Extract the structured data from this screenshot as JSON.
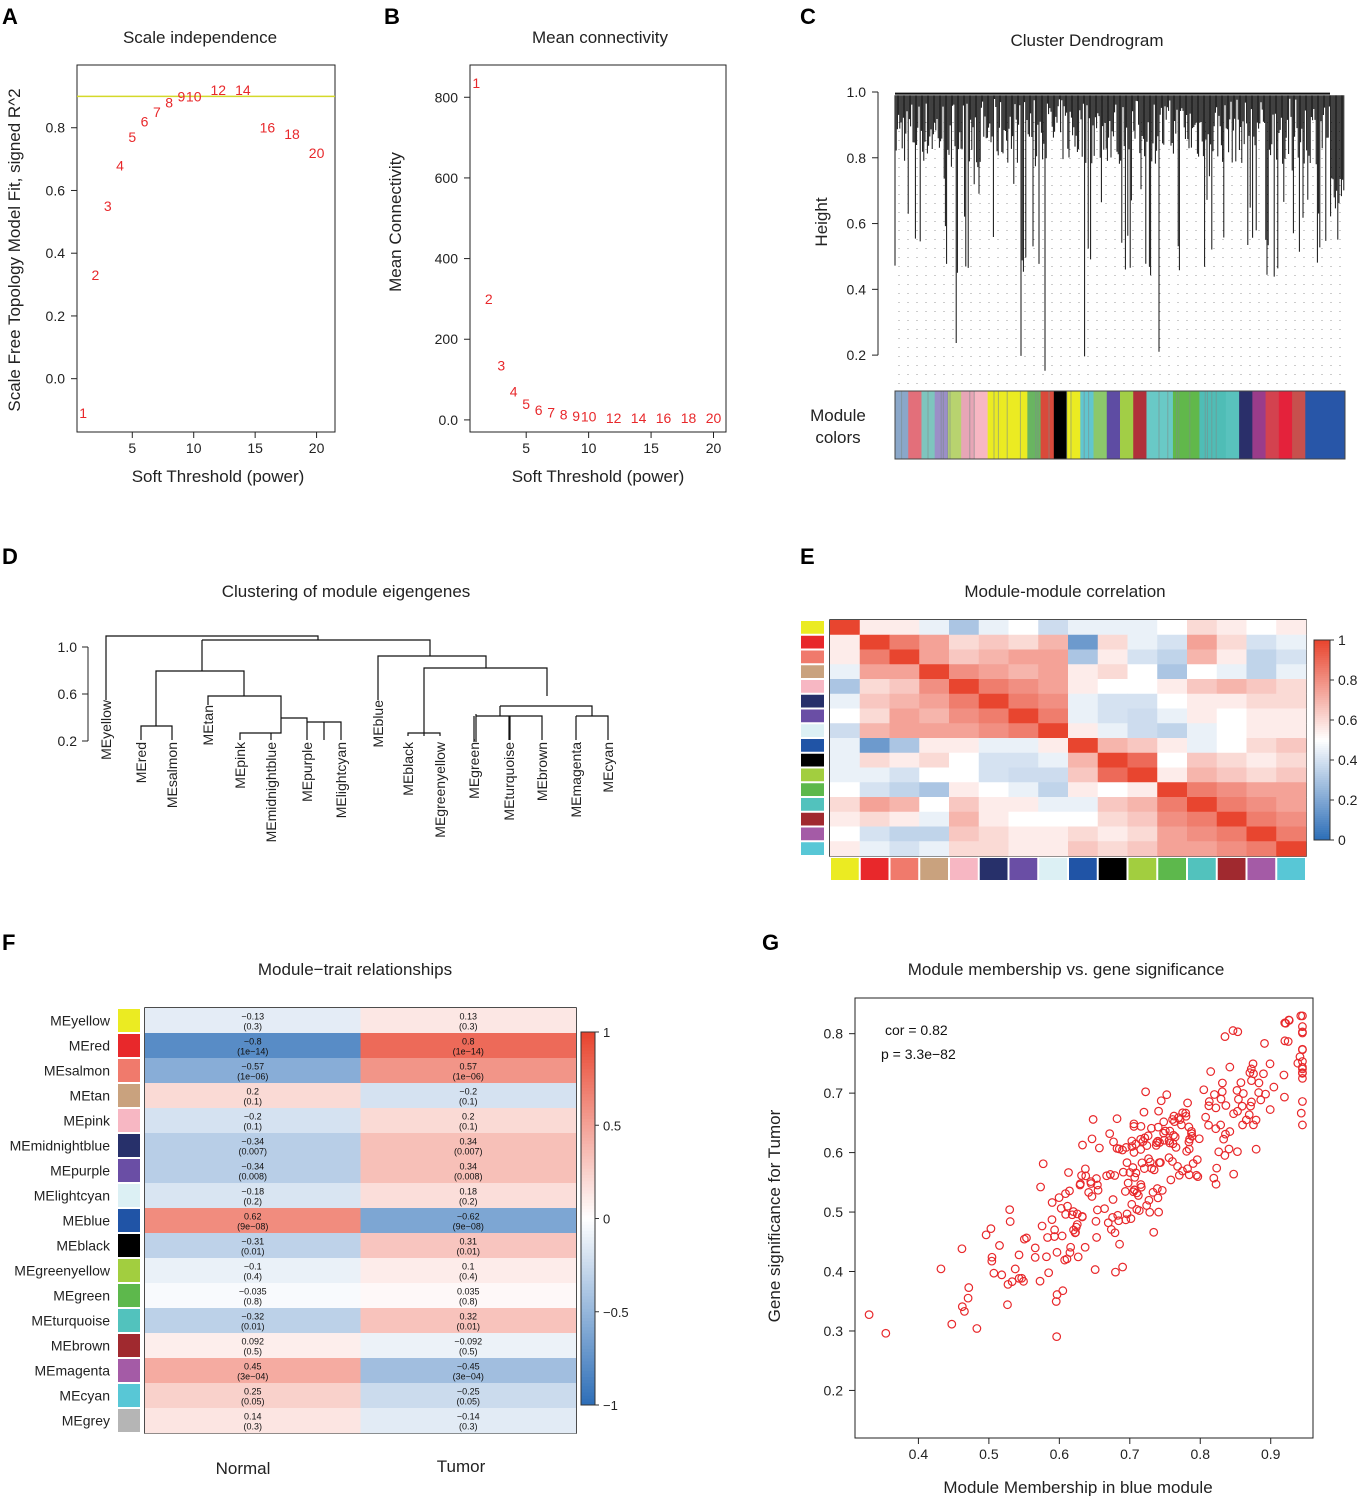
{
  "panel_labels": [
    "A",
    "B",
    "C",
    "D",
    "E",
    "F",
    "G"
  ],
  "colors": {
    "accent_red": "#e8282b",
    "threshold_line": "#d4d92a",
    "heat_low": "#2e6fb8",
    "heat_mid": "#ffffff",
    "heat_high": "#e8452f"
  },
  "chart_data": [
    {
      "id": "A",
      "type": "scatter",
      "title": "Scale independence",
      "xlabel": "Soft Threshold (power)",
      "ylabel": "Scale Free Topology Model Fit, signed R^2",
      "xlim": [
        0.5,
        21.5
      ],
      "ylim": [
        -0.17,
        1.0
      ],
      "xticks": [
        5,
        10,
        15,
        20
      ],
      "yticks": [
        0.0,
        0.2,
        0.4,
        0.6,
        0.8
      ],
      "hline": 0.9,
      "points": [
        {
          "x": 1,
          "y": -0.11,
          "label": "1"
        },
        {
          "x": 2,
          "y": 0.33,
          "label": "2"
        },
        {
          "x": 3,
          "y": 0.55,
          "label": "3"
        },
        {
          "x": 4,
          "y": 0.68,
          "label": "4"
        },
        {
          "x": 5,
          "y": 0.77,
          "label": "5"
        },
        {
          "x": 6,
          "y": 0.82,
          "label": "6"
        },
        {
          "x": 7,
          "y": 0.85,
          "label": "7"
        },
        {
          "x": 8,
          "y": 0.88,
          "label": "8"
        },
        {
          "x": 9,
          "y": 0.9,
          "label": "9"
        },
        {
          "x": 10,
          "y": 0.9,
          "label": "10"
        },
        {
          "x": 12,
          "y": 0.92,
          "label": "12"
        },
        {
          "x": 14,
          "y": 0.92,
          "label": "14"
        },
        {
          "x": 16,
          "y": 0.8,
          "label": "16"
        },
        {
          "x": 18,
          "y": 0.78,
          "label": "18"
        },
        {
          "x": 20,
          "y": 0.72,
          "label": "20"
        }
      ]
    },
    {
      "id": "B",
      "type": "scatter",
      "title": "Mean connectivity",
      "xlabel": "Soft Threshold (power)",
      "ylabel": "Mean Connectivity",
      "xlim": [
        0.5,
        21.0
      ],
      "ylim": [
        -30,
        880
      ],
      "xticks": [
        5,
        10,
        15,
        20
      ],
      "yticks": [
        0,
        200,
        400,
        600,
        800
      ],
      "points": [
        {
          "x": 1,
          "y": 835,
          "label": "1"
        },
        {
          "x": 2,
          "y": 300,
          "label": "2"
        },
        {
          "x": 3,
          "y": 135,
          "label": "3"
        },
        {
          "x": 4,
          "y": 70,
          "label": "4"
        },
        {
          "x": 5,
          "y": 40,
          "label": "5"
        },
        {
          "x": 6,
          "y": 25,
          "label": "6"
        },
        {
          "x": 7,
          "y": 18,
          "label": "7"
        },
        {
          "x": 8,
          "y": 13,
          "label": "8"
        },
        {
          "x": 9,
          "y": 10,
          "label": "9"
        },
        {
          "x": 10,
          "y": 8,
          "label": "10"
        },
        {
          "x": 12,
          "y": 5,
          "label": "12"
        },
        {
          "x": 14,
          "y": 5,
          "label": "14"
        },
        {
          "x": 16,
          "y": 5,
          "label": "16"
        },
        {
          "x": 18,
          "y": 5,
          "label": "18"
        },
        {
          "x": 20,
          "y": 5,
          "label": "20"
        }
      ]
    },
    {
      "id": "C",
      "type": "dendrogram",
      "title": "Cluster Dendrogram",
      "ylabel": "Height",
      "yticks": [
        0.2,
        0.4,
        0.6,
        0.8,
        1.0
      ],
      "ylim": [
        0.1,
        1.0
      ],
      "module_colors_label_1": "Module",
      "module_colors_label_2": "colors",
      "module_colors": [
        "#8aa7c9",
        "#e36f7a",
        "#7ec5be",
        "#9b8fc7",
        "#b8d36f",
        "#e7a6b6",
        "#f7b7c3",
        "#ebeb22",
        "#ebeb22",
        "#ebeb22",
        "#69b561",
        "#d94a3b",
        "#000000",
        "#ebeb22",
        "#61c6cf",
        "#8cc86b",
        "#5e4ca3",
        "#a2ce46",
        "#b0303a",
        "#69c9c6",
        "#69c9c6",
        "#61b84b",
        "#61b84b",
        "#4fbdb6",
        "#4fbdb6",
        "#59c2bd",
        "#2a2f6a",
        "#9a3c8a",
        "#d3424f",
        "#e4223b",
        "#c7504d",
        "#2856a8",
        "#2856a8",
        "#2856a8"
      ]
    },
    {
      "id": "D",
      "type": "dendrogram",
      "title": "Clustering of module eigengenes",
      "yticks": [
        0.2,
        0.6,
        1.0
      ],
      "ylim": [
        0.2,
        1.2
      ],
      "leaves": [
        "MEyellow",
        "MEred",
        "MEsalmon",
        "MEtan",
        "MEpink",
        "MEmidnightblue",
        "MEpurple",
        "MElightcyan",
        "MEblue",
        "MEblack",
        "MEgreenyellow",
        "MEgreen",
        "MEturquoise",
        "MEbrown",
        "MEmagenta",
        "MEcyan"
      ]
    },
    {
      "id": "E",
      "type": "heatmap",
      "title": "Module-module correlation",
      "scale_range": [
        0,
        1
      ],
      "scale_ticks": [
        "0",
        "0.2",
        "0.4",
        "0.6",
        "0.8",
        "1"
      ],
      "modules": [
        "MEyellow",
        "MEred",
        "MEsalmon",
        "MEtan",
        "MEpink",
        "MEmidnightblue",
        "MEpurple",
        "MElightcyan",
        "MEblue",
        "MEblack",
        "MEgreenyellow",
        "MEgreen",
        "MEturquoise",
        "MEbrown",
        "MEmagenta",
        "MEcyan"
      ],
      "module_colors": [
        "#ebeb22",
        "#e8282b",
        "#f07a6c",
        "#c9a27e",
        "#f7b7c3",
        "#27306a",
        "#6a4ea5",
        "#dcf0f4",
        "#2054a6",
        "#000000",
        "#a2ce3f",
        "#5db84c",
        "#52c2bd",
        "#a0292f",
        "#a45ba6",
        "#58c7d6"
      ],
      "matrix": [
        [
          1.0,
          0.55,
          0.55,
          0.45,
          0.3,
          0.45,
          0.5,
          0.38,
          0.45,
          0.45,
          0.45,
          0.5,
          0.6,
          0.55,
          0.5,
          0.55
        ],
        [
          0.55,
          1.0,
          0.85,
          0.75,
          0.6,
          0.65,
          0.6,
          0.7,
          0.15,
          0.6,
          0.45,
          0.4,
          0.75,
          0.6,
          0.4,
          0.45
        ],
        [
          0.55,
          0.85,
          1.0,
          0.75,
          0.65,
          0.7,
          0.75,
          0.75,
          0.3,
          0.55,
          0.4,
          0.35,
          0.7,
          0.55,
          0.35,
          0.4
        ],
        [
          0.45,
          0.75,
          0.75,
          1.0,
          0.8,
          0.75,
          0.7,
          0.75,
          0.55,
          0.6,
          0.5,
          0.3,
          0.5,
          0.45,
          0.35,
          0.45
        ],
        [
          0.3,
          0.6,
          0.65,
          0.8,
          1.0,
          0.85,
          0.8,
          0.75,
          0.55,
          0.5,
          0.5,
          0.55,
          0.65,
          0.7,
          0.65,
          0.6
        ],
        [
          0.45,
          0.65,
          0.7,
          0.75,
          0.85,
          1.0,
          0.85,
          0.8,
          0.45,
          0.4,
          0.4,
          0.5,
          0.55,
          0.55,
          0.6,
          0.6
        ],
        [
          0.5,
          0.6,
          0.75,
          0.7,
          0.8,
          0.85,
          1.0,
          0.85,
          0.45,
          0.4,
          0.38,
          0.45,
          0.55,
          0.5,
          0.55,
          0.55
        ],
        [
          0.38,
          0.7,
          0.75,
          0.75,
          0.75,
          0.8,
          0.85,
          1.0,
          0.55,
          0.45,
          0.38,
          0.35,
          0.45,
          0.5,
          0.55,
          0.55
        ],
        [
          0.45,
          0.15,
          0.3,
          0.55,
          0.55,
          0.45,
          0.45,
          0.55,
          1.0,
          0.7,
          0.65,
          0.55,
          0.45,
          0.5,
          0.6,
          0.65
        ],
        [
          0.45,
          0.6,
          0.55,
          0.6,
          0.5,
          0.4,
          0.4,
          0.45,
          0.7,
          1.0,
          0.9,
          0.5,
          0.65,
          0.6,
          0.55,
          0.6
        ],
        [
          0.45,
          0.45,
          0.4,
          0.5,
          0.5,
          0.4,
          0.38,
          0.38,
          0.65,
          0.9,
          1.0,
          0.55,
          0.7,
          0.65,
          0.6,
          0.65
        ],
        [
          0.5,
          0.4,
          0.35,
          0.3,
          0.55,
          0.5,
          0.45,
          0.35,
          0.55,
          0.5,
          0.55,
          1.0,
          0.85,
          0.8,
          0.75,
          0.75
        ],
        [
          0.6,
          0.75,
          0.7,
          0.5,
          0.65,
          0.55,
          0.55,
          0.45,
          0.45,
          0.65,
          0.7,
          0.85,
          1.0,
          0.85,
          0.8,
          0.75
        ],
        [
          0.55,
          0.6,
          0.55,
          0.45,
          0.7,
          0.55,
          0.5,
          0.5,
          0.5,
          0.6,
          0.65,
          0.8,
          0.85,
          1.0,
          0.85,
          0.8
        ],
        [
          0.5,
          0.4,
          0.35,
          0.35,
          0.65,
          0.6,
          0.55,
          0.55,
          0.6,
          0.55,
          0.6,
          0.75,
          0.8,
          0.85,
          1.0,
          0.85
        ],
        [
          0.55,
          0.45,
          0.4,
          0.45,
          0.6,
          0.6,
          0.55,
          0.55,
          0.65,
          0.6,
          0.65,
          0.75,
          0.75,
          0.8,
          0.85,
          1.0
        ]
      ]
    },
    {
      "id": "F",
      "type": "heatmap",
      "title": "Module−trait relationships",
      "columns": [
        "Normal",
        "Tumor"
      ],
      "scale_range": [
        -1,
        1
      ],
      "scale_ticks": [
        "1",
        "0.5",
        "0",
        "−0.5",
        "−1"
      ],
      "rows": [
        {
          "name": "MEyellow",
          "color": "#ebeb22",
          "normal": -0.13,
          "normal_label": "−0.13",
          "normal_p": "(0.3)",
          "tumor": 0.13,
          "tumor_label": "0.13",
          "tumor_p": "(0.3)"
        },
        {
          "name": "MEred",
          "color": "#e8282b",
          "normal": -0.8,
          "normal_label": "−0.8",
          "normal_p": "(1e−14)",
          "tumor": 0.8,
          "tumor_label": "0.8",
          "tumor_p": "(1e−14)"
        },
        {
          "name": "MEsalmon",
          "color": "#f07a6c",
          "normal": -0.57,
          "normal_label": "−0.57",
          "normal_p": "(1e−06)",
          "tumor": 0.57,
          "tumor_label": "0.57",
          "tumor_p": "(1e−06)"
        },
        {
          "name": "MEtan",
          "color": "#c9a27e",
          "normal": 0.2,
          "normal_label": "0.2",
          "normal_p": "(0.1)",
          "tumor": -0.2,
          "tumor_label": "−0.2",
          "tumor_p": "(0.1)"
        },
        {
          "name": "MEpink",
          "color": "#f7b7c3",
          "normal": -0.2,
          "normal_label": "−0.2",
          "normal_p": "(0.1)",
          "tumor": 0.2,
          "tumor_label": "0.2",
          "tumor_p": "(0.1)"
        },
        {
          "name": "MEmidnightblue",
          "color": "#27306a",
          "normal": -0.34,
          "normal_label": "−0.34",
          "normal_p": "(0.007)",
          "tumor": 0.34,
          "tumor_label": "0.34",
          "tumor_p": "(0.007)"
        },
        {
          "name": "MEpurple",
          "color": "#6a4ea5",
          "normal": -0.34,
          "normal_label": "−0.34",
          "normal_p": "(0.008)",
          "tumor": 0.34,
          "tumor_label": "0.34",
          "tumor_p": "(0.008)"
        },
        {
          "name": "MElightcyan",
          "color": "#dcf0f4",
          "normal": -0.18,
          "normal_label": "−0.18",
          "normal_p": "(0.2)",
          "tumor": 0.18,
          "tumor_label": "0.18",
          "tumor_p": "(0.2)"
        },
        {
          "name": "MEblue",
          "color": "#2054a6",
          "normal": 0.62,
          "normal_label": "0.62",
          "normal_p": "(9e−08)",
          "tumor": -0.62,
          "tumor_label": "−0.62",
          "tumor_p": "(9e−08)"
        },
        {
          "name": "MEblack",
          "color": "#000000",
          "normal": -0.31,
          "normal_label": "−0.31",
          "normal_p": "(0.01)",
          "tumor": 0.31,
          "tumor_label": "0.31",
          "tumor_p": "(0.01)"
        },
        {
          "name": "MEgreenyellow",
          "color": "#a2ce3f",
          "normal": -0.1,
          "normal_label": "−0.1",
          "normal_p": "(0.4)",
          "tumor": 0.1,
          "tumor_label": "0.1",
          "tumor_p": "(0.4)"
        },
        {
          "name": "MEgreen",
          "color": "#5db84c",
          "normal": -0.035,
          "normal_label": "−0.035",
          "normal_p": "(0.8)",
          "tumor": 0.035,
          "tumor_label": "0.035",
          "tumor_p": "(0.8)"
        },
        {
          "name": "MEturquoise",
          "color": "#52c2bd",
          "normal": -0.32,
          "normal_label": "−0.32",
          "normal_p": "(0.01)",
          "tumor": 0.32,
          "tumor_label": "0.32",
          "tumor_p": "(0.01)"
        },
        {
          "name": "MEbrown",
          "color": "#a0292f",
          "normal": 0.092,
          "normal_label": "0.092",
          "normal_p": "(0.5)",
          "tumor": -0.092,
          "tumor_label": "−0.092",
          "tumor_p": "(0.5)"
        },
        {
          "name": "MEmagenta",
          "color": "#a45ba6",
          "normal": 0.45,
          "normal_label": "0.45",
          "normal_p": "(3e−04)",
          "tumor": -0.45,
          "tumor_label": "−0.45",
          "tumor_p": "(3e−04)"
        },
        {
          "name": "MEcyan",
          "color": "#58c7d6",
          "normal": 0.25,
          "normal_label": "0.25",
          "normal_p": "(0.05)",
          "tumor": -0.25,
          "tumor_label": "−0.25",
          "tumor_p": "(0.05)"
        },
        {
          "name": "MEgrey",
          "color": "#b5b5b5",
          "normal": 0.14,
          "normal_label": "0.14",
          "normal_p": "(0.3)",
          "tumor": -0.14,
          "tumor_label": "−0.14",
          "tumor_p": "(0.3)"
        }
      ]
    },
    {
      "id": "G",
      "type": "scatter",
      "title": "Module membership vs. gene significance",
      "xlabel": "Module Membership in blue module",
      "ylabel": "Gene significance for Tumor",
      "xlim": [
        0.31,
        0.96
      ],
      "ylim": [
        0.12,
        0.86
      ],
      "xticks": [
        0.4,
        0.5,
        0.6,
        0.7,
        0.8,
        0.9
      ],
      "yticks": [
        0.2,
        0.3,
        0.4,
        0.5,
        0.6,
        0.7,
        0.8
      ],
      "annotation_cor": "cor = 0.82",
      "annotation_p": "p = 3.3e−82",
      "n_points": 300,
      "regression": {
        "slope": 0.8,
        "intercept": 0.0,
        "sd": 0.055
      }
    }
  ]
}
